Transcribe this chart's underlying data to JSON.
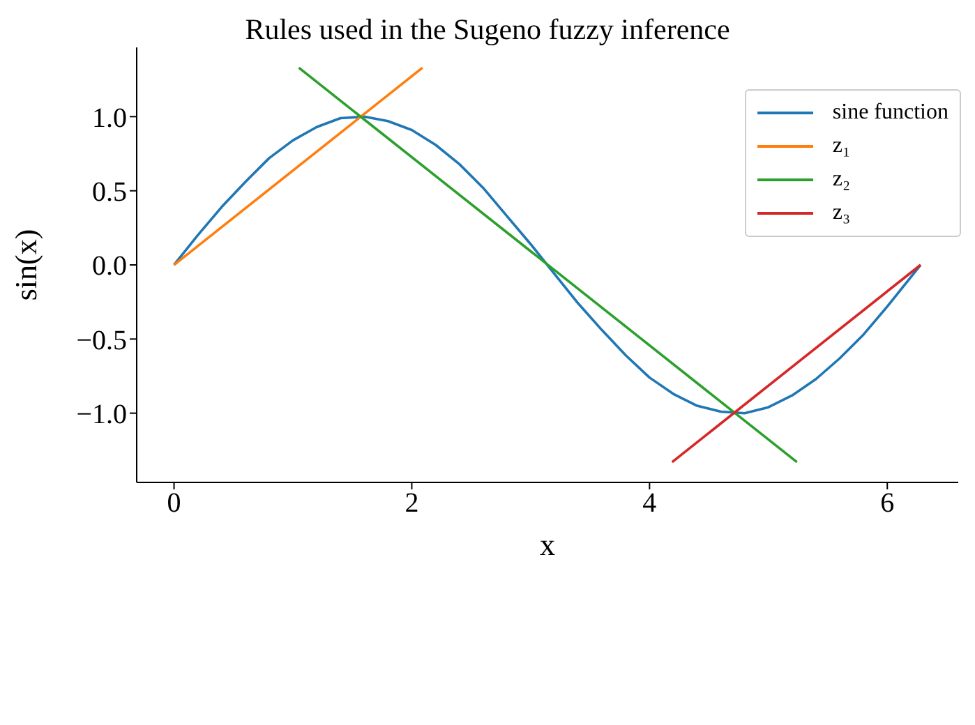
{
  "chart_data": {
    "type": "line",
    "title": "Rules used in the Sugeno fuzzy inference",
    "xlabel": "x",
    "ylabel": "sin(x)",
    "xlim": [
      -0.314,
      6.597
    ],
    "xticks": [
      0,
      2,
      4,
      6
    ],
    "ylim": [
      -1.467,
      1.467
    ],
    "yticks": [
      {
        "value": -1,
        "label": "−1.0"
      },
      {
        "value": -0.5,
        "label": "−0.5"
      },
      {
        "value": 0,
        "label": "0.0"
      },
      {
        "value": 0.5,
        "label": "0.5"
      },
      {
        "value": 1,
        "label": "1.0"
      }
    ],
    "grid": false,
    "legend": "top right",
    "marker": "none",
    "line_style": "solid",
    "series": [
      {
        "name": "sine function",
        "color": "#1f77b4",
        "x": [
          0,
          0.2,
          0.4,
          0.6,
          0.8,
          1.0,
          1.2,
          1.4,
          1.6,
          1.8,
          2.0,
          2.2,
          2.4,
          2.6,
          2.8,
          3.0,
          3.2,
          3.4,
          3.6,
          3.8,
          4.0,
          4.2,
          4.4,
          4.6,
          4.8,
          5.0,
          5.2,
          5.4,
          5.6,
          5.8,
          6.0,
          6.2,
          6.28
        ],
        "values": [
          0,
          0.2,
          0.39,
          0.56,
          0.72,
          0.84,
          0.93,
          0.99,
          1.0,
          0.97,
          0.91,
          0.81,
          0.68,
          0.52,
          0.33,
          0.14,
          -0.06,
          -0.26,
          -0.44,
          -0.61,
          -0.76,
          -0.87,
          -0.95,
          -0.99,
          -1.0,
          -0.96,
          -0.88,
          -0.77,
          -0.63,
          -0.47,
          -0.28,
          -0.08,
          0
        ]
      },
      {
        "name": "z₁",
        "color": "#ff7f0e",
        "x": [
          0,
          2.09
        ],
        "values": [
          0,
          1.33
        ]
      },
      {
        "name": "z₂",
        "color": "#2ca02c",
        "x": [
          1.05,
          5.24
        ],
        "values": [
          1.33,
          -1.33
        ]
      },
      {
        "name": "z₃",
        "color": "#d62728",
        "x": [
          4.19,
          6.28
        ],
        "values": [
          -1.33,
          0
        ]
      }
    ]
  }
}
